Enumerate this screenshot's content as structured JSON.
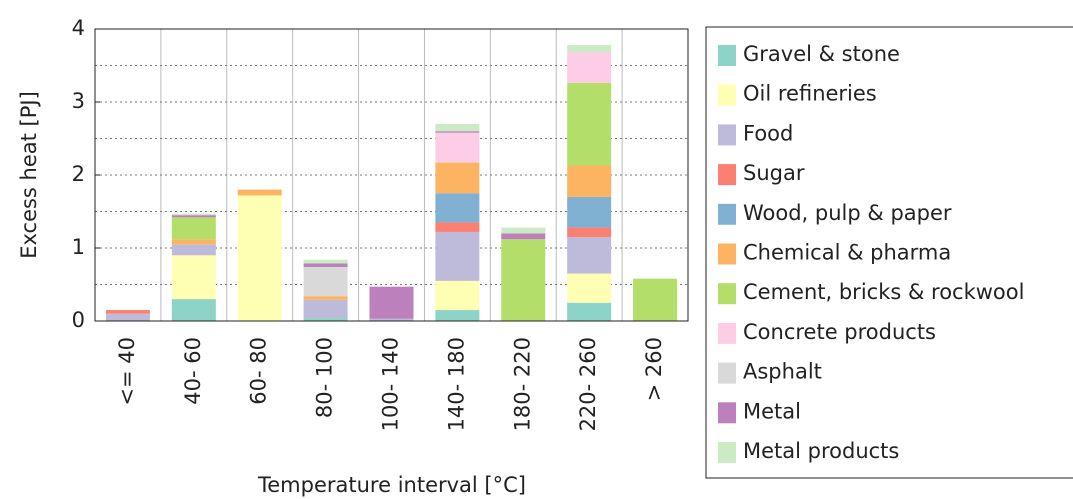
{
  "chart_data": {
    "type": "stacked_bar",
    "xlabel": "Temperature interval [°C]",
    "ylabel": "Excess heat [PJ]",
    "categories": [
      "<= 40",
      "40- 60",
      "60- 80",
      "80- 100",
      "100- 140",
      "140- 180",
      "180- 220",
      "220- 260",
      "> 260"
    ],
    "series": [
      {
        "name": "Gravel & stone",
        "color": "#8dd3c7",
        "values": [
          0,
          0.3,
          0,
          0.04,
          0,
          0.15,
          0,
          0.25,
          0
        ]
      },
      {
        "name": "Oil refineries",
        "color": "#ffffb3",
        "values": [
          0,
          0.6,
          1.72,
          0,
          0,
          0.4,
          0,
          0.4,
          0
        ]
      },
      {
        "name": "Food",
        "color": "#bebada",
        "values": [
          0.1,
          0.15,
          0,
          0.25,
          0.03,
          0.67,
          0,
          0.5,
          0
        ]
      },
      {
        "name": "Sugar",
        "color": "#fb8072",
        "values": [
          0.05,
          0,
          0,
          0,
          0,
          0.13,
          0,
          0.13,
          0
        ]
      },
      {
        "name": "Wood, pulp & paper",
        "color": "#80b1d3",
        "values": [
          0,
          0,
          0,
          0,
          0,
          0.4,
          0,
          0.42,
          0
        ]
      },
      {
        "name": "Chemical & pharma",
        "color": "#fdb462",
        "values": [
          0,
          0.07,
          0.08,
          0.05,
          0,
          0.42,
          0,
          0.43,
          0
        ]
      },
      {
        "name": "Cement, bricks & rockwool",
        "color": "#b3de69",
        "values": [
          0,
          0.3,
          0,
          0,
          0,
          0,
          1.12,
          1.13,
          0.58
        ]
      },
      {
        "name": "Concrete products",
        "color": "#fccde5",
        "values": [
          0,
          0,
          0,
          0,
          0,
          0.4,
          0,
          0.42,
          0
        ]
      },
      {
        "name": "Asphalt",
        "color": "#d9d9d9",
        "values": [
          0,
          0,
          0,
          0.4,
          0,
          0.01,
          0,
          0,
          0
        ]
      },
      {
        "name": "Metal",
        "color": "#bc80bd",
        "values": [
          0,
          0.03,
          0,
          0.05,
          0.44,
          0.02,
          0.08,
          0,
          0
        ]
      },
      {
        "name": "Metal products",
        "color": "#ccebc5",
        "values": [
          0,
          0.02,
          0,
          0.05,
          0,
          0.1,
          0.08,
          0.1,
          0
        ]
      }
    ],
    "ylim": [
      0,
      4
    ],
    "yticks": [
      0,
      1,
      2,
      3,
      4
    ],
    "minor_yticks": [
      0.5,
      1.5,
      2.5,
      3.5
    ],
    "grid": true,
    "legend": "right"
  }
}
